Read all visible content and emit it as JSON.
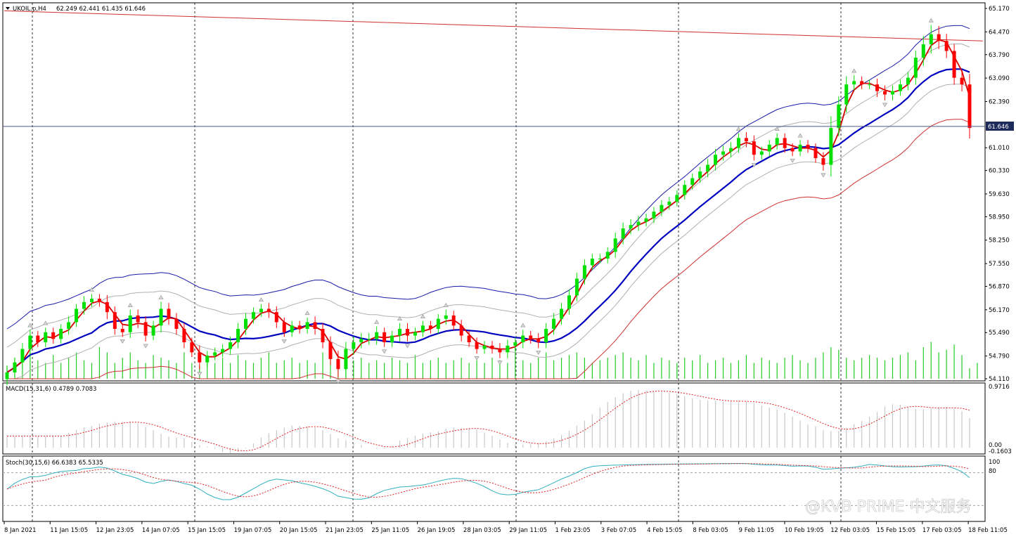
{
  "header": {
    "symbol": "UKOIL.p,H4",
    "ohlc": "62.249 62.441 61.435 61.646"
  },
  "current_price_label": "61.646",
  "macd": {
    "label": "MACD(15,31,6) 0.4789 0.7083",
    "scale": [
      "0.9716",
      "0.00",
      "-0.1603"
    ]
  },
  "stoch": {
    "label": "Stoch(30,15,6) 66.6383 65.5335",
    "scale": [
      "100",
      "80"
    ]
  },
  "watermark": "@KVB PRIME 中文服务",
  "colors": {
    "bull": "#00e000",
    "bear": "#ff0000",
    "fast_ma": "#d40000",
    "mid_ma": "#0000c0",
    "upper_band": "#1a1aa8",
    "env": "#b0b0b0",
    "lower_red": "#d03030",
    "trendline": "#d03030",
    "macd_hist": "#c8c8c8",
    "signal": "#e02020",
    "stoch_main": "#30b0c0",
    "stoch_signal": "#e02020",
    "price_line": "#4a5a8a"
  },
  "chart_data": {
    "type": "candlestick",
    "y_ticks": [
      "65.170",
      "64.470",
      "63.790",
      "63.090",
      "62.390",
      "61.010",
      "60.330",
      "59.630",
      "58.950",
      "58.250",
      "57.550",
      "56.870",
      "56.170",
      "55.490",
      "54.790",
      "54.110"
    ],
    "ylim": [
      54.11,
      65.17
    ],
    "current_price": 61.646,
    "x_tick_labels": [
      "8 Jan 2021",
      "11 Jan 15:05",
      "12 Jan 23:05",
      "14 Jan 07:05",
      "15 Jan 15:05",
      "19 Jan 07:05",
      "20 Jan 15:05",
      "21 Jan 23:05",
      "25 Jan 11:05",
      "26 Jan 19:05",
      "28 Jan 03:05",
      "29 Jan 11:05",
      "1 Feb 23:05",
      "3 Feb 07:05",
      "4 Feb 15:05",
      "8 Feb 03:05",
      "9 Feb 11:05",
      "10 Feb 19:05",
      "12 Feb 03:05",
      "15 Feb 15:05",
      "17 Feb 03:05",
      "18 Feb 11:05"
    ],
    "trend_line": [
      65.1,
      64.2
    ],
    "close_path": [
      54.3,
      54.6,
      55.0,
      55.4,
      55.2,
      55.5,
      55.3,
      55.6,
      55.8,
      56.2,
      56.4,
      56.5,
      56.4,
      56.1,
      55.6,
      55.5,
      56.0,
      55.8,
      55.4,
      55.7,
      56.2,
      55.9,
      55.6,
      55.2,
      54.9,
      54.6,
      54.8,
      54.9,
      55.0,
      55.2,
      55.6,
      55.9,
      56.1,
      56.2,
      56.1,
      55.8,
      55.5,
      55.7,
      55.6,
      55.8,
      55.6,
      55.2,
      54.7,
      54.4,
      55.0,
      55.2,
      55.3,
      55.3,
      55.5,
      55.2,
      55.4,
      55.6,
      55.4,
      55.5,
      55.7,
      55.6,
      55.9,
      56.0,
      55.7,
      55.4,
      55.2,
      55.0,
      55.1,
      55.0,
      54.9,
      55.1,
      55.2,
      55.4,
      55.3,
      55.2,
      55.6,
      55.9,
      56.2,
      56.6,
      57.1,
      57.5,
      57.7,
      57.7,
      57.9,
      58.3,
      58.6,
      58.7,
      58.8,
      58.9,
      59.1,
      59.3,
      59.4,
      59.6,
      59.9,
      60.1,
      60.3,
      60.5,
      60.8,
      60.9,
      61.0,
      61.3,
      61.2,
      60.8,
      60.9,
      61.1,
      61.3,
      61.0,
      60.9,
      61.1,
      61.0,
      60.7,
      60.5,
      61.6,
      62.3,
      62.9,
      63.0,
      62.9,
      62.9,
      62.7,
      62.6,
      62.7,
      62.9,
      63.1,
      63.7,
      64.1,
      64.4,
      64.2,
      63.9,
      63.1,
      62.9,
      61.6
    ],
    "range": [
      0.5,
      0.4,
      0.5,
      0.5,
      0.4,
      0.4,
      0.4,
      0.4,
      0.5,
      0.4,
      0.5,
      0.4,
      0.4,
      0.6,
      0.5,
      0.4,
      0.5,
      0.5,
      0.5,
      0.4,
      0.6,
      0.5,
      0.5,
      0.5,
      0.4,
      0.6,
      0.4,
      0.4,
      0.4,
      0.5,
      0.5,
      0.5,
      0.4,
      0.4,
      0.5,
      0.5,
      0.4,
      0.4,
      0.4,
      0.4,
      0.5,
      0.5,
      0.5,
      0.7,
      0.6,
      0.5,
      0.5,
      0.5,
      0.5,
      0.4,
      0.4,
      0.5,
      0.5,
      0.4,
      0.4,
      0.4,
      0.4,
      0.5,
      0.4,
      0.5,
      0.4,
      0.4,
      0.4,
      0.4,
      0.5,
      0.5,
      0.4,
      0.5,
      0.4,
      0.5,
      0.5,
      0.5,
      0.5,
      0.5,
      0.5,
      0.5,
      0.4,
      0.4,
      0.4,
      0.5,
      0.5,
      0.5,
      0.5,
      0.4,
      0.4,
      0.4,
      0.4,
      0.4,
      0.4,
      0.4,
      0.4,
      0.5,
      0.5,
      0.5,
      0.5,
      0.4,
      0.5,
      0.5,
      0.4,
      0.4,
      0.4,
      0.4,
      0.4,
      0.4,
      0.4,
      0.4,
      0.5,
      1.0,
      0.7,
      0.7,
      0.5,
      0.4,
      0.4,
      0.5,
      0.5,
      0.5,
      0.4,
      0.5,
      0.6,
      0.7,
      0.8,
      0.7,
      0.6,
      0.6,
      0.6,
      0.9
    ],
    "volume": [
      0.25,
      0.4,
      0.3,
      0.5,
      0.35,
      0.3,
      0.45,
      0.3,
      0.4,
      0.5,
      0.35,
      0.3,
      0.6,
      0.5,
      0.3,
      0.4,
      0.5,
      0.35,
      0.3,
      0.45,
      0.4,
      0.35,
      0.3,
      0.5,
      0.3,
      0.25,
      0.35,
      0.3,
      0.4,
      0.3,
      0.45,
      0.35,
      0.3,
      0.4,
      0.5,
      0.3,
      0.35,
      0.4,
      0.3,
      0.35,
      0.3,
      0.5,
      0.6,
      0.45,
      0.3,
      0.35,
      0.4,
      0.3,
      0.35,
      0.3,
      0.4,
      0.35,
      0.3,
      0.45,
      0.3,
      0.35,
      0.4,
      0.3,
      0.35,
      0.4,
      0.3,
      0.35,
      0.3,
      0.4,
      0.35,
      0.3,
      0.6,
      0.35,
      0.3,
      0.4,
      0.5,
      0.35,
      0.4,
      0.45,
      0.5,
      0.4,
      0.3,
      0.35,
      0.4,
      0.45,
      0.5,
      0.4,
      0.35,
      0.45,
      0.3,
      0.4,
      0.35,
      0.3,
      0.4,
      0.35,
      0.45,
      0.3,
      0.35,
      0.4,
      0.3,
      0.35,
      0.45,
      0.3,
      0.4,
      0.35,
      0.3,
      0.4,
      0.45,
      0.35,
      0.3,
      0.4,
      0.5,
      0.6,
      0.55,
      0.4,
      0.35,
      0.4,
      0.45,
      0.4,
      0.35,
      0.4,
      0.45,
      0.5,
      0.35,
      0.6,
      0.7,
      0.5,
      0.55,
      0.65,
      0.45,
      0.2,
      0.3
    ]
  }
}
